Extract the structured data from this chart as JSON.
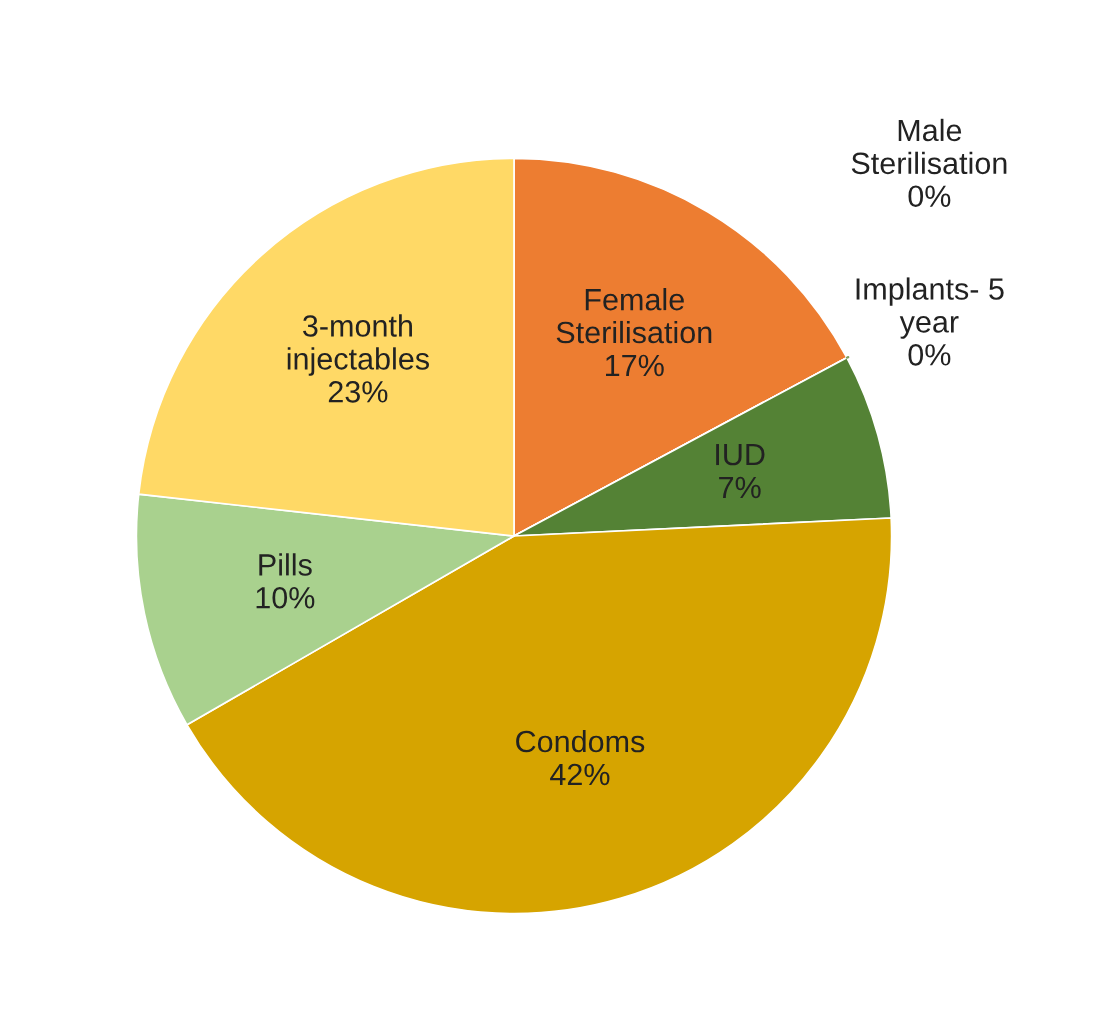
{
  "chart_data": {
    "type": "pie",
    "categories": [
      "Female\nSterilisation",
      "Male\nSterilisation",
      "Implants- 5\nyear",
      "IUD",
      "Condoms",
      "Pills",
      "3-month\ninjectables"
    ],
    "values": [
      17,
      0,
      0,
      7,
      42,
      10,
      23
    ],
    "colors": [
      "#ed7d31",
      "#c55a11",
      "#70ad47",
      "#548235",
      "#d6a400",
      "#a9d18e",
      "#ffd966"
    ],
    "value_labels": [
      "17%",
      "0%",
      "0%",
      "7%",
      "42%",
      "10%",
      "23%"
    ]
  }
}
